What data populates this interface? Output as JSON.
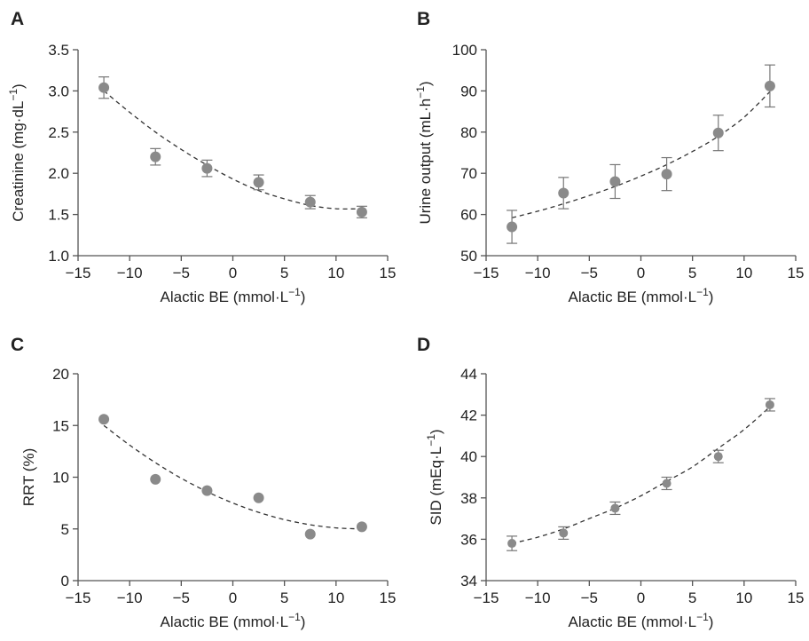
{
  "chart_data": [
    {
      "panel": "A",
      "type": "scatter",
      "xlabel": "Alactic BE (mmol·L",
      "xlabel_sup": "−1",
      "xlabel_end": ")",
      "ylabel": "Creatinine (mg·dL",
      "ylabel_sup": "−1",
      "ylabel_end": ")",
      "xlim": [
        -15,
        15
      ],
      "ylim": [
        1.0,
        3.5
      ],
      "xticks": [
        -15,
        -10,
        -5,
        0,
        5,
        10,
        15
      ],
      "yticks": [
        1.0,
        1.5,
        2.0,
        2.5,
        3.0,
        3.5
      ],
      "xtick_labels": [
        "−15",
        "−10",
        "−5",
        "0",
        "5",
        "10",
        "15"
      ],
      "ytick_labels": [
        "1.0",
        "1.5",
        "2.0",
        "2.5",
        "3.0",
        "3.5"
      ],
      "x": [
        -12.5,
        -7.5,
        -2.5,
        2.5,
        7.5,
        12.5
      ],
      "y": [
        3.04,
        2.2,
        2.06,
        1.89,
        1.65,
        1.53
      ],
      "err": [
        0.13,
        0.1,
        0.1,
        0.09,
        0.08,
        0.07
      ],
      "trend": [
        {
          "x": -12.5,
          "y": 3.0
        },
        {
          "x": -10,
          "y": 2.74
        },
        {
          "x": -7.5,
          "y": 2.5
        },
        {
          "x": -5,
          "y": 2.29
        },
        {
          "x": -2.5,
          "y": 2.1
        },
        {
          "x": 0,
          "y": 1.93
        },
        {
          "x": 2.5,
          "y": 1.79
        },
        {
          "x": 5,
          "y": 1.69
        },
        {
          "x": 7.5,
          "y": 1.61
        },
        {
          "x": 10,
          "y": 1.57
        },
        {
          "x": 12.5,
          "y": 1.57
        }
      ],
      "grid": false,
      "marker_color": "#8a8a8a",
      "line_color": "#333333"
    },
    {
      "panel": "B",
      "type": "scatter",
      "xlabel": "Alactic BE (mmol·L",
      "xlabel_sup": "−1",
      "xlabel_end": ")",
      "ylabel": "Urine output (mL·h",
      "ylabel_sup": "−1",
      "ylabel_end": ")",
      "xlim": [
        -15,
        15
      ],
      "ylim": [
        50,
        100
      ],
      "xticks": [
        -15,
        -10,
        -5,
        0,
        5,
        10,
        15
      ],
      "yticks": [
        50,
        60,
        70,
        80,
        90,
        100
      ],
      "xtick_labels": [
        "−15",
        "−10",
        "−5",
        "0",
        "5",
        "10",
        "15"
      ],
      "ytick_labels": [
        "50",
        "60",
        "70",
        "80",
        "90",
        "100"
      ],
      "x": [
        -12.5,
        -7.5,
        -2.5,
        2.5,
        7.5,
        12.5
      ],
      "y": [
        57,
        65.2,
        68,
        69.8,
        79.8,
        91.2
      ],
      "err": [
        4,
        3.8,
        4.1,
        4,
        4.3,
        5.1
      ],
      "trend": [
        {
          "x": -12.5,
          "y": 59.2
        },
        {
          "x": -10,
          "y": 60.8
        },
        {
          "x": -7.5,
          "y": 62.6
        },
        {
          "x": -5,
          "y": 64.6
        },
        {
          "x": -2.5,
          "y": 66.8
        },
        {
          "x": 0,
          "y": 69.3
        },
        {
          "x": 2.5,
          "y": 72.1
        },
        {
          "x": 5,
          "y": 75.3
        },
        {
          "x": 7.5,
          "y": 79.0
        },
        {
          "x": 10,
          "y": 83.6
        },
        {
          "x": 12.5,
          "y": 89.8
        }
      ],
      "grid": false,
      "marker_color": "#8a8a8a",
      "line_color": "#333333"
    },
    {
      "panel": "C",
      "type": "scatter",
      "xlabel": "Alactic BE (mmol·L",
      "xlabel_sup": "−1",
      "xlabel_end": ")",
      "ylabel": "RRT (%)",
      "ylabel_sup": "",
      "ylabel_end": "",
      "xlim": [
        -15,
        15
      ],
      "ylim": [
        0,
        20
      ],
      "xticks": [
        -15,
        -10,
        -5,
        0,
        5,
        10,
        15
      ],
      "yticks": [
        0,
        5,
        10,
        15,
        20
      ],
      "xtick_labels": [
        "−15",
        "−10",
        "−5",
        "0",
        "5",
        "10",
        "15"
      ],
      "ytick_labels": [
        "0",
        "5",
        "10",
        "15",
        "20"
      ],
      "x": [
        -12.5,
        -7.5,
        -2.5,
        2.5,
        7.5,
        12.5
      ],
      "y": [
        15.6,
        9.8,
        8.7,
        8.0,
        4.5,
        5.2
      ],
      "err": [
        0,
        0,
        0,
        0,
        0,
        0
      ],
      "trend": [
        {
          "x": -12.5,
          "y": 15.0
        },
        {
          "x": -10,
          "y": 13.1
        },
        {
          "x": -7.5,
          "y": 11.4
        },
        {
          "x": -5,
          "y": 9.9
        },
        {
          "x": -2.5,
          "y": 8.6
        },
        {
          "x": 0,
          "y": 7.5
        },
        {
          "x": 2.5,
          "y": 6.6
        },
        {
          "x": 5,
          "y": 5.9
        },
        {
          "x": 7.5,
          "y": 5.4
        },
        {
          "x": 10,
          "y": 5.1
        },
        {
          "x": 12.5,
          "y": 5.0
        }
      ],
      "grid": false,
      "marker_color": "#8a8a8a",
      "line_color": "#333333"
    },
    {
      "panel": "D",
      "type": "scatter",
      "xlabel": "Alactic BE (mmol·L",
      "xlabel_sup": "−1",
      "xlabel_end": ")",
      "ylabel": "SID (mEq·L",
      "ylabel_sup": "−1",
      "ylabel_end": ")",
      "xlim": [
        -15,
        15
      ],
      "ylim": [
        34,
        44
      ],
      "xticks": [
        -15,
        -10,
        -5,
        0,
        5,
        10,
        15
      ],
      "yticks": [
        34,
        36,
        38,
        40,
        42,
        44
      ],
      "xtick_labels": [
        "−15",
        "−10",
        "−5",
        "0",
        "5",
        "10",
        "15"
      ],
      "ytick_labels": [
        "34",
        "36",
        "38",
        "40",
        "42",
        "44"
      ],
      "x": [
        -12.5,
        -7.5,
        -2.5,
        2.5,
        7.5,
        12.5
      ],
      "y": [
        35.8,
        36.3,
        37.5,
        38.7,
        40.0,
        42.5
      ],
      "err": [
        0.35,
        0.3,
        0.3,
        0.3,
        0.3,
        0.3
      ],
      "trend": [
        {
          "x": -12.5,
          "y": 35.8
        },
        {
          "x": -10,
          "y": 36.1
        },
        {
          "x": -7.5,
          "y": 36.5
        },
        {
          "x": -5,
          "y": 37.0
        },
        {
          "x": -2.5,
          "y": 37.5
        },
        {
          "x": 0,
          "y": 38.1
        },
        {
          "x": 2.5,
          "y": 38.8
        },
        {
          "x": 5,
          "y": 39.5
        },
        {
          "x": 7.5,
          "y": 40.4
        },
        {
          "x": 10,
          "y": 41.3
        },
        {
          "x": 12.5,
          "y": 42.4
        }
      ],
      "grid": false,
      "marker_color": "#8a8a8a",
      "line_color": "#333333"
    }
  ]
}
